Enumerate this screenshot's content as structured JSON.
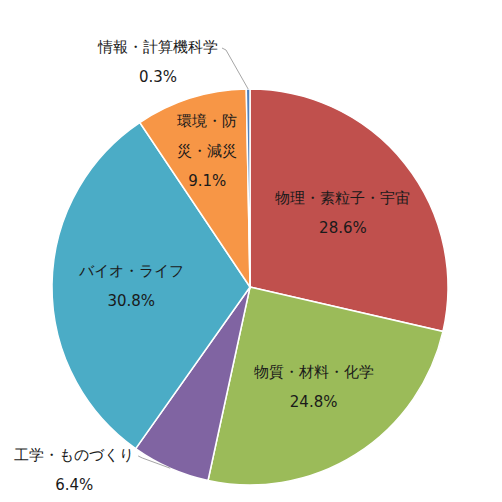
{
  "chart_data": {
    "type": "pie",
    "categories": [
      "物理・素粒子・宇宙",
      "物質・材料・化学",
      "工学・ものづくり",
      "バイオ・ライフ",
      "環境・防災・減災",
      "情報・計算機科学"
    ],
    "values": [
      28.6,
      24.8,
      6.4,
      30.8,
      9.1,
      0.3
    ],
    "value_labels": [
      "28.6%",
      "24.8%",
      "6.4%",
      "30.8%",
      "9.1%",
      "0.3%"
    ],
    "colors": [
      "#c0504d",
      "#9bbb59",
      "#8064a2",
      "#4bacc6",
      "#f79646",
      "#4f81bd"
    ],
    "data_labels": true
  }
}
